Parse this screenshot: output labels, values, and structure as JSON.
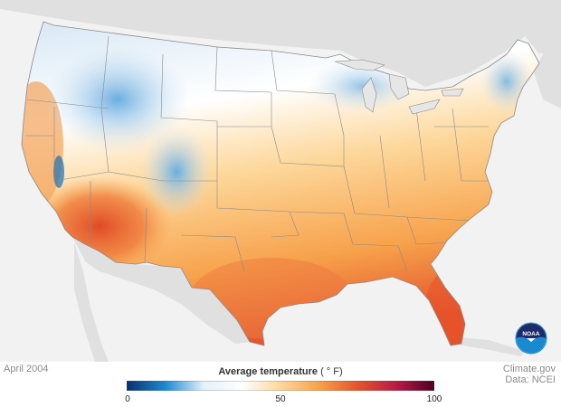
{
  "period_label": "April 2004",
  "legend": {
    "title": "Average temperature",
    "unit": "( ° F)",
    "min": 0,
    "mid": 50,
    "max": 100,
    "ticks": [
      "0",
      "50",
      "100"
    ],
    "colors": [
      "#08306b",
      "#1b8ad1",
      "#e4f0fa",
      "#ffffff",
      "#fdd79a",
      "#f7a24c",
      "#e4542c",
      "#b81c44",
      "#4d0023"
    ]
  },
  "credit": {
    "source": "Climate.gov",
    "data": "Data: NCEI"
  },
  "logo": {
    "text": "NOAA",
    "colors": {
      "dark": "#1d2b6b",
      "light": "#1a8ad0"
    }
  },
  "map": {
    "land_color": "#e0e0e0",
    "ocean_color": "#f4f4f4",
    "border_color": "#8a8a8a"
  }
}
